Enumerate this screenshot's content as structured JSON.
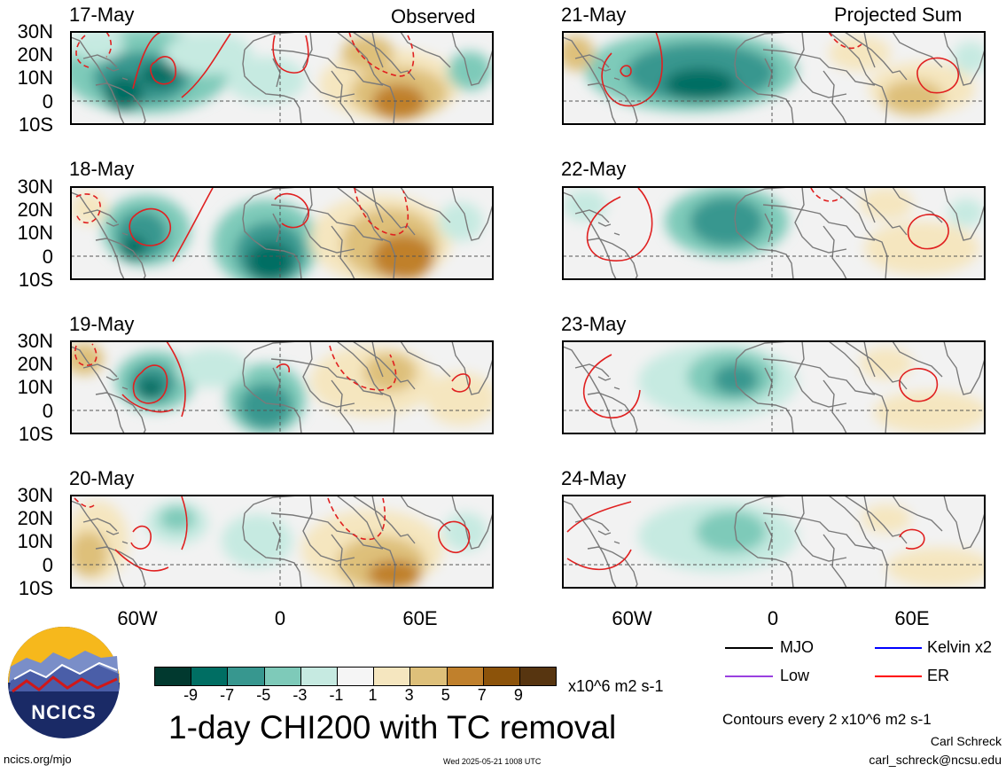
{
  "headers": {
    "observed": "Observed",
    "projected": "Projected Sum"
  },
  "panels_left": [
    {
      "date": "17-May"
    },
    {
      "date": "18-May"
    },
    {
      "date": "19-May"
    },
    {
      "date": "20-May"
    }
  ],
  "panels_right": [
    {
      "date": "21-May"
    },
    {
      "date": "22-May"
    },
    {
      "date": "23-May"
    },
    {
      "date": "24-May"
    }
  ],
  "lat_labels": [
    "30N",
    "20N",
    "10N",
    "0",
    "10S"
  ],
  "lon_labels": [
    "60W",
    "0",
    "60E"
  ],
  "colorbar": {
    "ticks": [
      "-9",
      "-7",
      "-5",
      "-3",
      "-1",
      "1",
      "3",
      "5",
      "7",
      "9"
    ],
    "units": "x10^6 m2 s-1",
    "colors": [
      "#01392f",
      "#006e63",
      "#37978f",
      "#7ecab9",
      "#c6eae1",
      "#f5f5f5",
      "#f5e6bf",
      "#dec07a",
      "#c0802c",
      "#8c530a",
      "#573510"
    ]
  },
  "legend": {
    "items": [
      {
        "label": "MJO",
        "color": "#000000"
      },
      {
        "label": "Kelvin x2",
        "color": "#0000ff"
      },
      {
        "label": "Low",
        "color": "#9a40e0"
      },
      {
        "label": "ER",
        "color": "#ff0000"
      }
    ],
    "contours": "Contours every 2 x10^6 m2 s-1"
  },
  "title": "1-day CHI200 with TC removal",
  "logo_text": "NCICS",
  "footer": {
    "url": "ncics.org/mjo",
    "timestamp": "Wed 2025-05-21 1008 UTC",
    "author": "Carl Schreck",
    "email": "carl_schreck@ncsu.edu"
  }
}
